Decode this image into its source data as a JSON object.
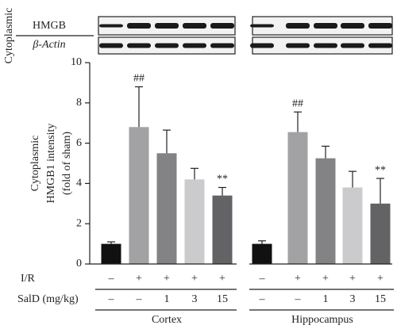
{
  "chart_data": {
    "type": "bar",
    "ylabel": [
      "Cytoplasmic",
      "HMGB1 intensity",
      "(fold of sham)"
    ],
    "ylim": [
      0,
      10
    ],
    "yticks": [
      0,
      2,
      4,
      6,
      8,
      10
    ],
    "colors": [
      "#111111",
      "#a2a2a5",
      "#838386",
      "#cbcbcd",
      "#636366"
    ],
    "blot": {
      "side_label": "Cytoplasmic",
      "rows": [
        "HMGB",
        "β-Actin"
      ]
    },
    "conditions": [
      {
        "label": "I/R",
        "cells": [
          "–",
          "+",
          "+",
          "+",
          "+"
        ]
      },
      {
        "label": "SalD (mg/kg)",
        "cells": [
          "–",
          "–",
          "1",
          "3",
          "15"
        ]
      }
    ],
    "groups": [
      {
        "name": "Cortex",
        "values": [
          1.0,
          6.8,
          5.5,
          4.2,
          3.4
        ],
        "errors": [
          0.1,
          2.0,
          1.15,
          0.55,
          0.4
        ],
        "annotations": [
          null,
          "##",
          null,
          null,
          "**"
        ]
      },
      {
        "name": "Hippocampus",
        "values": [
          1.0,
          6.55,
          5.25,
          3.8,
          3.0
        ],
        "errors": [
          0.15,
          1.0,
          0.6,
          0.8,
          1.25
        ],
        "annotations": [
          null,
          "##",
          null,
          null,
          "**"
        ]
      }
    ]
  }
}
